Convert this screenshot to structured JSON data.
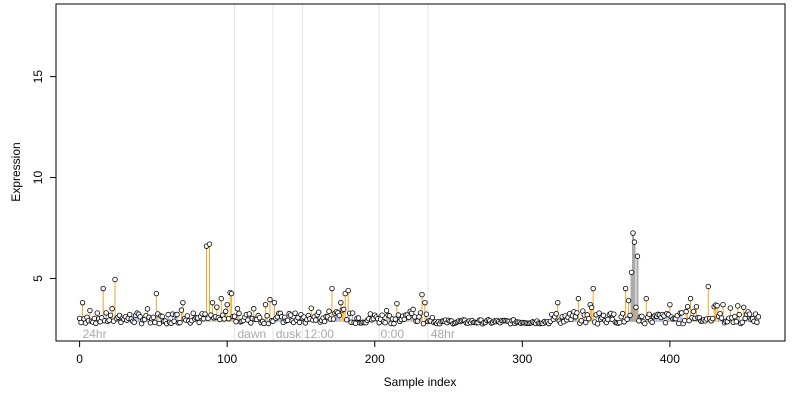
{
  "chart_data": {
    "type": "scatter",
    "title": "",
    "xlabel": "Sample index",
    "ylabel": "Expression",
    "xlim": [
      -16,
      478
    ],
    "ylim": [
      1.9,
      18.6
    ],
    "x_ticks": [
      0,
      100,
      200,
      300,
      400
    ],
    "y_ticks": [
      5,
      10,
      15
    ],
    "baseline": 2.85,
    "grid": false,
    "legend": "none",
    "colors": {
      "points_stroke": "#000000",
      "points_fill": "#ffffff",
      "baseline_stems": "#8fa8d4",
      "high_stems": "#f5a623",
      "peak_stems": "#aaaaaa",
      "dividers": "#e4e4e4",
      "region_labels": "#aaaaaa"
    },
    "regions": [
      {
        "label": "24hr",
        "x": 2
      },
      {
        "label": "dawn",
        "x": 107
      },
      {
        "label": "dusk",
        "x": 133
      },
      {
        "label": "12:00",
        "x": 152
      },
      {
        "label": "0:00",
        "x": 204
      },
      {
        "label": "48hr",
        "x": 238
      }
    ],
    "dividers": [
      105,
      131,
      151,
      203,
      236
    ],
    "highlights": [
      {
        "x": 2,
        "y": 3.8
      },
      {
        "x": 16,
        "y": 4.5
      },
      {
        "x": 24,
        "y": 4.95
      },
      {
        "x": 52,
        "y": 4.25
      },
      {
        "x": 70,
        "y": 3.8
      },
      {
        "x": 86,
        "y": 6.6
      },
      {
        "x": 88,
        "y": 6.7
      },
      {
        "x": 90,
        "y": 3.8
      },
      {
        "x": 96,
        "y": 4.0
      },
      {
        "x": 100,
        "y": 3.7
      },
      {
        "x": 102,
        "y": 4.3
      },
      {
        "x": 103,
        "y": 4.25
      },
      {
        "x": 118,
        "y": 3.5
      },
      {
        "x": 126,
        "y": 3.7
      },
      {
        "x": 129,
        "y": 3.95
      },
      {
        "x": 132,
        "y": 3.8
      },
      {
        "x": 171,
        "y": 4.5
      },
      {
        "x": 177,
        "y": 3.8
      },
      {
        "x": 180,
        "y": 4.25
      },
      {
        "x": 182,
        "y": 4.4
      },
      {
        "x": 232,
        "y": 4.2
      },
      {
        "x": 234,
        "y": 3.8
      },
      {
        "x": 324,
        "y": 3.8
      },
      {
        "x": 338,
        "y": 4.0
      },
      {
        "x": 346,
        "y": 3.7
      },
      {
        "x": 348,
        "y": 4.5
      },
      {
        "x": 370,
        "y": 4.5
      },
      {
        "x": 372,
        "y": 3.9
      },
      {
        "x": 374,
        "y": 5.3
      },
      {
        "x": 375,
        "y": 7.25
      },
      {
        "x": 378,
        "y": 6.1
      },
      {
        "x": 384,
        "y": 4.0
      },
      {
        "x": 400,
        "y": 3.7
      },
      {
        "x": 412,
        "y": 3.6
      },
      {
        "x": 414,
        "y": 4.0
      },
      {
        "x": 418,
        "y": 3.6
      },
      {
        "x": 426,
        "y": 4.6
      },
      {
        "x": 430,
        "y": 3.6
      },
      {
        "x": 436,
        "y": 3.7
      }
    ],
    "peaks": [
      {
        "x": 374,
        "y": 5.3
      },
      {
        "x": 375,
        "y": 7.25
      },
      {
        "x": 376,
        "y": 6.8
      },
      {
        "x": 378,
        "y": 6.1
      }
    ]
  }
}
